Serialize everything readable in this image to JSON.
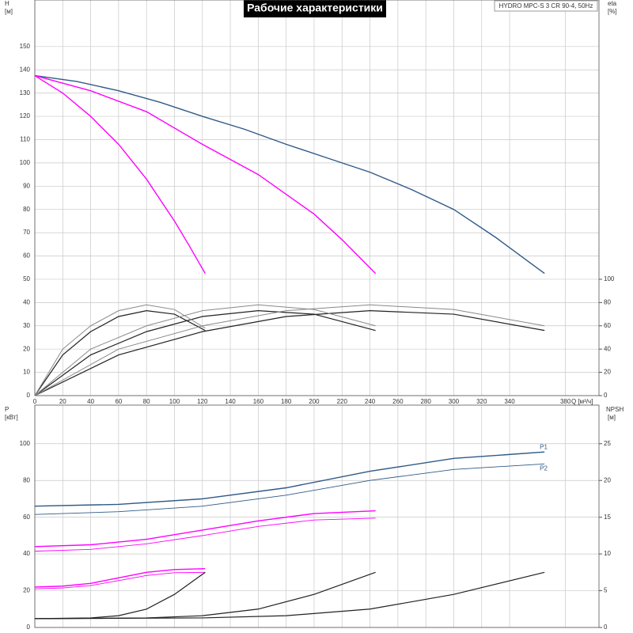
{
  "chart_data": [
    {
      "type": "line",
      "title": "Рабочие характеристики",
      "subtitle": "HYDRO MPC-S 3 CR 90-4, 50Hz",
      "y_label": "H",
      "y_unit": "[м]",
      "y2_label": "eta",
      "y2_unit": "[%]",
      "x_label": "Q [м³/ч]",
      "xlim": [
        0,
        404
      ],
      "xticks": [
        0,
        20,
        40,
        60,
        80,
        100,
        120,
        140,
        160,
        180,
        200,
        220,
        240,
        260,
        280,
        300,
        320,
        340,
        380
      ],
      "ylim": [
        0,
        170
      ],
      "yticks": [
        0,
        10,
        20,
        30,
        40,
        50,
        60,
        70,
        80,
        90,
        100,
        110,
        120,
        130,
        140,
        150
      ],
      "y2lim": [
        0,
        340
      ],
      "y2ticks": [
        0,
        20,
        40,
        60,
        80,
        100
      ],
      "grid": true,
      "series": [
        {
          "color": "#2f5a86",
          "width": 1.4,
          "x": [
            0,
            30,
            60,
            90,
            120,
            150,
            180,
            210,
            240,
            270,
            300,
            330,
            365
          ],
          "values": [
            137.5,
            135,
            131,
            126,
            120,
            114.5,
            108,
            102,
            96,
            88.5,
            80,
            68,
            52.5
          ]
        },
        {
          "color": "#ff00ff",
          "width": 1.4,
          "x": [
            0,
            40,
            80,
            120,
            160,
            200,
            220,
            244
          ],
          "values": [
            137.5,
            131,
            122,
            108,
            95,
            78,
            67,
            52.5
          ]
        },
        {
          "color": "#ff00ff",
          "width": 1.4,
          "x": [
            0,
            20,
            40,
            60,
            80,
            100,
            110,
            122
          ],
          "values": [
            137.5,
            130,
            120,
            108,
            93,
            75,
            65,
            52.5
          ]
        },
        {
          "color": "#222222",
          "width": 1.2,
          "axis": "y2",
          "x": [
            0,
            20,
            40,
            60,
            80,
            100,
            122
          ],
          "values": [
            0,
            35,
            55,
            68,
            73,
            70,
            56
          ]
        },
        {
          "color": "#222222",
          "width": 1.2,
          "axis": "y2",
          "x": [
            0,
            40,
            80,
            120,
            160,
            200,
            244
          ],
          "values": [
            0,
            35,
            55,
            68,
            73,
            70,
            56
          ]
        },
        {
          "color": "#222222",
          "width": 1.2,
          "axis": "y2",
          "x": [
            0,
            60,
            120,
            180,
            240,
            300,
            365
          ],
          "values": [
            0,
            35,
            55,
            68,
            73,
            70,
            56
          ]
        },
        {
          "color": "#888888",
          "width": 1,
          "axis": "y2",
          "x": [
            0,
            20,
            40,
            60,
            80,
            100,
            122
          ],
          "values": [
            0,
            40,
            60,
            73,
            78,
            74,
            58
          ]
        },
        {
          "color": "#888888",
          "width": 1,
          "axis": "y2",
          "x": [
            0,
            40,
            80,
            120,
            160,
            200,
            244
          ],
          "values": [
            0,
            40,
            60,
            73,
            78,
            74,
            60
          ]
        },
        {
          "color": "#888888",
          "width": 1,
          "axis": "y2",
          "x": [
            0,
            60,
            120,
            180,
            240,
            300,
            365
          ],
          "values": [
            0,
            40,
            60,
            73,
            78,
            74,
            60
          ]
        }
      ]
    },
    {
      "type": "line",
      "y_label": "P",
      "y_unit": "[кВт]",
      "y2_label": "NPSH",
      "y2_unit": "[м]",
      "xlim": [
        0,
        404
      ],
      "ylim": [
        0,
        121
      ],
      "yticks": [
        0,
        20,
        40,
        60,
        80,
        100
      ],
      "y2lim": [
        0,
        30.25
      ],
      "y2ticks": [
        0,
        5,
        10,
        15,
        20,
        25
      ],
      "grid": true,
      "series": [
        {
          "name": "P1",
          "color": "#2f5a86",
          "width": 1.4,
          "x": [
            0,
            60,
            120,
            180,
            240,
            300,
            365
          ],
          "values": [
            66,
            67,
            70,
            76,
            85,
            92,
            95.5
          ]
        },
        {
          "name": "P2",
          "color": "#2f5a86",
          "width": 0.9,
          "x": [
            0,
            60,
            120,
            180,
            240,
            300,
            365
          ],
          "values": [
            61.5,
            63,
            66,
            72,
            80,
            86,
            89
          ]
        },
        {
          "color": "#ff00ff",
          "width": 1.4,
          "x": [
            0,
            40,
            80,
            120,
            160,
            200,
            244
          ],
          "values": [
            44,
            45,
            48,
            53,
            58,
            62,
            63.5
          ]
        },
        {
          "color": "#ff00ff",
          "width": 0.9,
          "x": [
            0,
            40,
            80,
            120,
            160,
            200,
            244
          ],
          "values": [
            41.5,
            42.5,
            45.5,
            50,
            55,
            58.5,
            59.5
          ]
        },
        {
          "color": "#ff00ff",
          "width": 1.4,
          "x": [
            0,
            20,
            40,
            60,
            80,
            100,
            122
          ],
          "values": [
            22,
            22.5,
            24,
            27,
            30,
            31.5,
            32
          ]
        },
        {
          "color": "#ff00ff",
          "width": 0.9,
          "x": [
            0,
            20,
            40,
            60,
            80,
            100,
            122
          ],
          "values": [
            21,
            21.5,
            22.8,
            25.5,
            28.3,
            29.8,
            30
          ]
        },
        {
          "color": "#222222",
          "width": 1.2,
          "axis": "y2",
          "x": [
            0,
            40,
            60,
            80,
            100,
            122
          ],
          "values": [
            1.2,
            1.3,
            1.6,
            2.5,
            4.5,
            7.5
          ]
        },
        {
          "color": "#222222",
          "width": 1.2,
          "axis": "y2",
          "x": [
            0,
            80,
            120,
            160,
            200,
            244
          ],
          "values": [
            1.2,
            1.3,
            1.6,
            2.5,
            4.5,
            7.5
          ]
        },
        {
          "color": "#222222",
          "width": 1.2,
          "axis": "y2",
          "x": [
            0,
            120,
            180,
            240,
            300,
            365
          ],
          "values": [
            1.2,
            1.3,
            1.6,
            2.5,
            4.5,
            7.5
          ]
        }
      ]
    }
  ]
}
